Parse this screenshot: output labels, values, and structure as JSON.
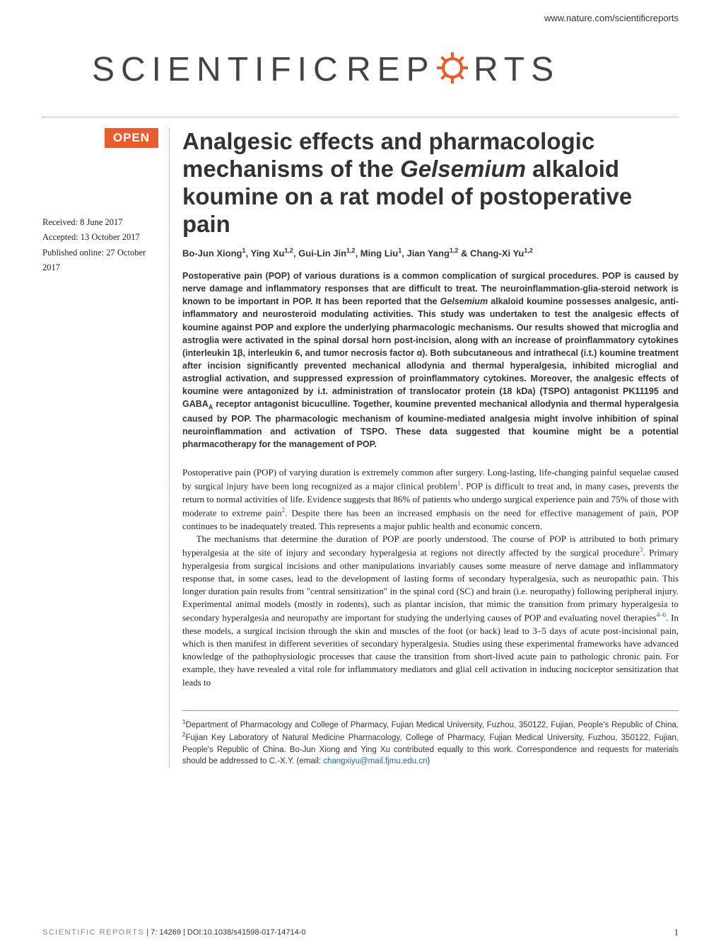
{
  "header": {
    "url": "www.nature.com/scientificreports"
  },
  "journal": {
    "name": "SCIENTIFIC REPORTS"
  },
  "badge": {
    "open": "OPEN"
  },
  "dates": {
    "received": "Received: 8 June 2017",
    "accepted": "Accepted: 13 October 2017",
    "published": "Published online: 27 October 2017"
  },
  "article": {
    "title_part1": "Analgesic effects and pharmacologic mechanisms of the ",
    "title_italic": "Gelsemium",
    "title_part2": " alkaloid koumine on a rat model of postoperative pain",
    "authors_html": "Bo-Jun Xiong<sup>1</sup>, Ying Xu<sup>1,2</sup>, Gui-Lin Jin<sup>1,2</sup>, Ming Liu<sup>1</sup>, Jian Yang<sup>1,2</sup> & Chang-Xi Yu<sup>1,2</sup>",
    "abstract_html": "Postoperative pain (POP) of various durations is a common complication of surgical procedures. POP is caused by nerve damage and inflammatory responses that are difficult to treat. The neuroinflammation-glia-steroid network is known to be important in POP. It has been reported that the <i>Gelsemium</i> alkaloid koumine possesses analgesic, anti-inflammatory and neurosteroid modulating activities. This study was undertaken to test the analgesic effects of koumine against POP and explore the underlying pharmacologic mechanisms. Our results showed that microglia and astroglia were activated in the spinal dorsal horn post-incision, along with an increase of proinflammatory cytokines (interleukin 1β, interleukin 6, and tumor necrosis factor α). Both subcutaneous and intrathecal (i.t.) koumine treatment after incision significantly prevented mechanical allodynia and thermal hyperalgesia, inhibited microglial and astroglial activation, and suppressed expression of proinflammatory cytokines. Moreover, the analgesic effects of koumine were antagonized by i.t. administration of translocator protein (18 kDa) (TSPO) antagonist PK11195 and GABA<sub>A</sub> receptor antagonist bicuculline. Together, koumine prevented mechanical allodynia and thermal hyperalgesia caused by POP. The pharmacologic mechanism of koumine-mediated analgesia might involve inhibition of spinal neuroinflammation and activation of TSPO. These data suggested that koumine might be a potential pharmacotherapy for the management of POP.",
    "body_p1_html": "Postoperative pain (POP) of varying duration is extremely common after surgery. Long-lasting, life-changing painful sequelae caused by surgical injury have been long recognized as a major clinical problem<sup><a>1</a></sup>. POP is difficult to treat and, in many cases, prevents the return to normal activities of life. Evidence suggests that 86% of patients who undergo surgical experience pain and 75% of those with moderate to extreme pain<sup><a>2</a></sup>. Despite there has been an increased emphasis on the need for effective management of pain, POP continues to be inadequately treated. This represents a major public health and economic concern.",
    "body_p2_html": "The mechanisms that determine the duration of POP are poorly understood. The course of POP is attributed to both primary hyperalgesia at the site of injury and secondary hyperalgesia at regions not directly affected by the surgical procedure<sup><a>3</a></sup>. Primary hyperalgesia from surgical incisions and other manipulations invariably causes some measure of nerve damage and inflammatory response that, in some cases, lead to the development of lasting forms of secondary hyperalgesia, such as neuropathic pain. This longer duration pain results from \"central sensitization\" in the spinal cord (SC) and brain (i.e. neuropathy) following peripheral injury. Experimental animal models (mostly in rodents), such as plantar incision, that mimic the transition from primary hyperalgesia to secondary hyperalgesia and neuropathy are important for studying the underlying causes of POP and evaluating novel therapies<sup><a>4–6</a></sup>. In these models, a surgical incision through the skin and muscles of the foot (or back) lead to 3–5 days of acute post-incisional pain, which is then manifest in different severities of secondary hyperalgesia. Studies using these experimental frameworks have advanced knowledge of the pathophysiologic processes that cause the transition from short-lived acute pain to pathologic chronic pain. For example, they have revealed a vital role for inflammatory mediators and glial cell activation in inducing nociceptor sensitization that leads to",
    "affiliations_html": "<sup>1</sup>Department of Pharmacology and College of Pharmacy, Fujian Medical University, Fuzhou, 350122, Fujian, People's Republic of China. <sup>2</sup>Fujian Key Laboratory of Natural Medicine Pharmacology, College of Pharmacy, Fujian Medical University, Fuzhou, 350122, Fujian, People's Republic of China. Bo-Jun Xiong and Ying Xu contributed equally to this work. Correspondence and requests for materials should be addressed to C.-X.Y. (email: <span class=\"email\">changxiyu@mail.fjmu.edu.cn</span>)"
  },
  "footer": {
    "journal_label": "SCIENTIFIC REPORTS",
    "citation": " | 7: 14269 | DOI:10.1038/s41598-017-14714-0",
    "page": "1"
  },
  "colors": {
    "open_badge_bg": "#e85d2e",
    "link_color": "#2166ac",
    "text_color": "#333333"
  }
}
